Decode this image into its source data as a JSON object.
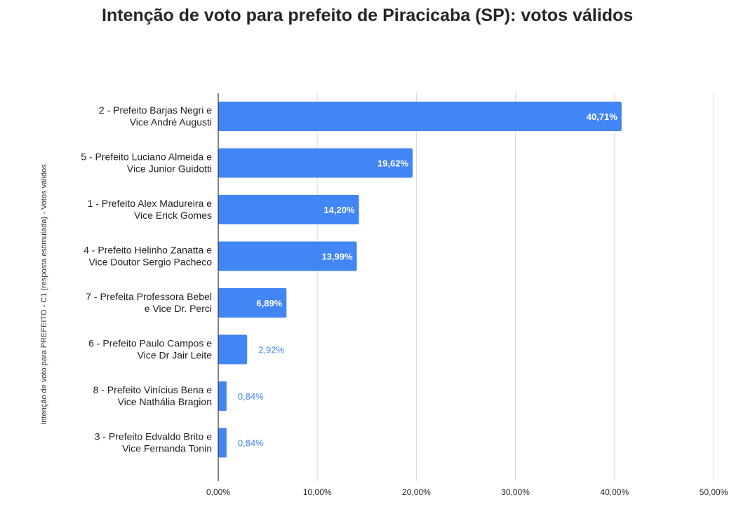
{
  "chart_data": {
    "type": "bar",
    "orientation": "horizontal",
    "title": "Intenção de voto para prefeito de Piracicaba (SP): votos válidos",
    "ylabel": "Intenção de voto para PREFEITO - C1 (resposta estimulada) - Votos válidos",
    "xlim": [
      0,
      50
    ],
    "x_ticks": [
      "0,00%",
      "10,00%",
      "20,00%",
      "30,00%",
      "40,00%",
      "50,00%"
    ],
    "grid": true,
    "bar_color": "#4285f4",
    "categories": [
      [
        "2 - Prefeito Barjas Negri e",
        "Vice André Augusti"
      ],
      [
        "5 - Prefeito Luciano Almeida e",
        "Vice Junior Guidotti"
      ],
      [
        "1 - Prefeito Alex Madureira e",
        "Vice Erick Gomes"
      ],
      [
        "4 - Prefeito Helinho Zanatta e",
        "Vice Doutor Sergio Pacheco"
      ],
      [
        "7 - Prefeita Professora Bebel",
        "e Vice Dr. Perci"
      ],
      [
        "6 - Prefeito Paulo Campos e",
        "Vice Dr Jair Leite"
      ],
      [
        "8 - Prefeito Vinícius Bena e",
        "Vice Nathália Bragion"
      ],
      [
        "3 - Prefeito Edvaldo Brito e",
        "Vice Fernanda Tonin"
      ]
    ],
    "values": [
      40.71,
      19.62,
      14.2,
      13.99,
      6.89,
      2.92,
      0.84,
      0.84
    ],
    "value_labels": [
      "40,71%",
      "19,62%",
      "14,20%",
      "13,99%",
      "6,89%",
      "2,92%",
      "0,84%",
      "0,84%"
    ]
  }
}
